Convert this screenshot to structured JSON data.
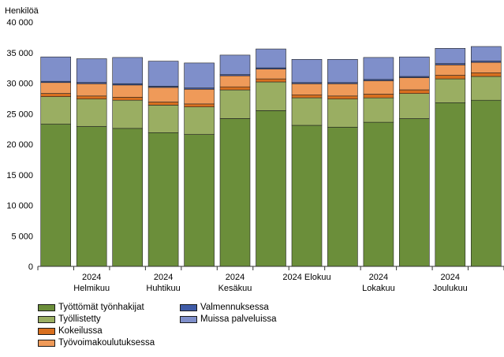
{
  "chart_data": {
    "type": "bar",
    "stacked": true,
    "ylabel": "Henkilöä",
    "ylim": [
      0,
      40000
    ],
    "yticks": [
      "0",
      "5 000",
      "10 000",
      "15 000",
      "20 000",
      "25 000",
      "30 000",
      "35 000",
      "40 000"
    ],
    "ytick_values": [
      0,
      5000,
      10000,
      15000,
      20000,
      25000,
      30000,
      35000,
      40000
    ],
    "categories": [
      "",
      "2024 Helmikuu",
      "",
      "2024 Huhtikuu",
      "",
      "2024 Kesäkuu",
      "",
      "2024 Elokuu",
      "",
      "2024 Lokakuu",
      "",
      "2024 Joulukuu",
      ""
    ],
    "xtick_labels": [
      {
        "index": 1,
        "lines": [
          "2024",
          "Helmikuu"
        ]
      },
      {
        "index": 3,
        "lines": [
          "2024",
          "Huhtikuu"
        ]
      },
      {
        "index": 5,
        "lines": [
          "2024",
          "Kesäkuu"
        ]
      },
      {
        "index": 7,
        "lines": [
          "2024 Elokuu"
        ]
      },
      {
        "index": 9,
        "lines": [
          "2024",
          "Lokakuu"
        ]
      },
      {
        "index": 11,
        "lines": [
          "2024",
          "Joulukuu"
        ]
      }
    ],
    "series": [
      {
        "name": "Työttömät työnhakijat",
        "color": "#6b8e3a",
        "values": [
          23300,
          22900,
          22600,
          21900,
          21600,
          24200,
          25500,
          23100,
          22800,
          23600,
          24200,
          26800,
          27200
        ]
      },
      {
        "name": "Työllistetty",
        "color": "#9aae62",
        "values": [
          4500,
          4500,
          4600,
          4500,
          4500,
          4700,
          4700,
          4500,
          4600,
          4000,
          4100,
          3900,
          3900
        ]
      },
      {
        "name": "Kokeilussa",
        "color": "#d86f1f",
        "values": [
          500,
          500,
          500,
          500,
          500,
          500,
          500,
          500,
          500,
          600,
          600,
          600,
          600
        ]
      },
      {
        "name": "Työvoimakoulutuksessa",
        "color": "#ef9a59",
        "values": [
          1800,
          2000,
          2000,
          2400,
          2400,
          1800,
          1600,
          1800,
          2000,
          2200,
          2000,
          1700,
          1700
        ]
      },
      {
        "name": "Valmennuksessa",
        "color": "#3f5ba7",
        "values": [
          200,
          200,
          200,
          200,
          200,
          200,
          200,
          200,
          200,
          200,
          200,
          200,
          200
        ]
      },
      {
        "name": "Muissa palveluissa",
        "color": "#7f8fca",
        "values": [
          4000,
          3900,
          4300,
          4100,
          4100,
          3200,
          3100,
          3800,
          3800,
          3600,
          3200,
          2500,
          2400
        ]
      }
    ],
    "legend_position": "bottom-left",
    "grid": false
  }
}
